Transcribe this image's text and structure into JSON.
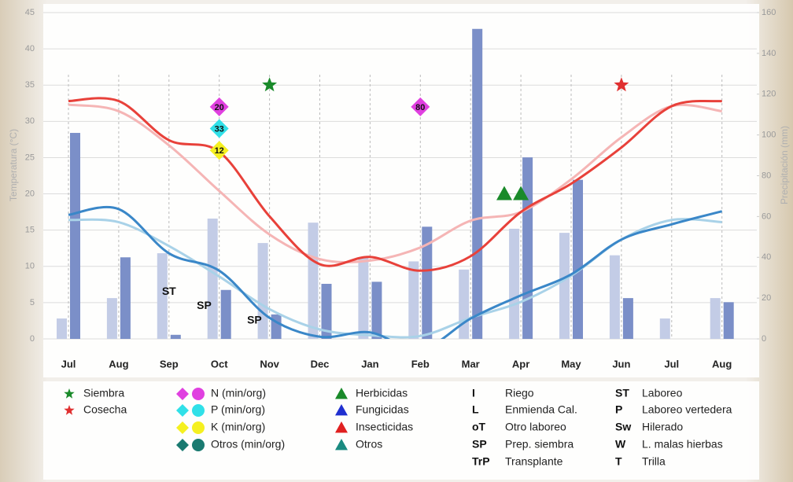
{
  "chart_data": {
    "type": "climate",
    "categories": [
      "Jul",
      "Aug",
      "Sep",
      "Oct",
      "Nov",
      "Dec",
      "Jan",
      "Feb",
      "Mar",
      "Apr",
      "May",
      "Jun",
      "Jul",
      "Aug"
    ],
    "ylabel": "Temperatura (°C)",
    "y2label": "Precipitación (mm)",
    "ylim": [
      0,
      45
    ],
    "yticks": [
      0,
      5,
      10,
      15,
      20,
      25,
      30,
      35,
      40,
      45
    ],
    "y2lim": [
      0,
      160
    ],
    "y2ticks": [
      0,
      20,
      40,
      60,
      80,
      100,
      120,
      140,
      160
    ],
    "grid": true,
    "series": [
      {
        "kind": "bar",
        "axis": "y2",
        "color": "#c3cce6",
        "values": [
          10,
          20,
          42,
          59,
          47,
          57,
          40,
          38,
          34,
          54,
          52,
          41,
          10,
          20
        ]
      },
      {
        "kind": "bar",
        "axis": "y2",
        "color": "#7b8fc8",
        "values": [
          101,
          40,
          2,
          24,
          12,
          27,
          28,
          55,
          152,
          89,
          78,
          20,
          null,
          18
        ]
      },
      {
        "kind": "line",
        "color": "#f5b5b5",
        "values": [
          32.3,
          31.4,
          26.7,
          20.4,
          14.4,
          11,
          10.8,
          12.6,
          16.3,
          17.5,
          22,
          27.8,
          32.1,
          31.4
        ]
      },
      {
        "kind": "line",
        "color": "#a9d2e8",
        "values": [
          16.4,
          16.1,
          12.8,
          8.6,
          4.1,
          1.3,
          0.5,
          0.4,
          2.9,
          5.1,
          8.7,
          13.7,
          16.4,
          16.1
        ]
      },
      {
        "kind": "line",
        "color": "#e8413a",
        "values": [
          32.8,
          32.8,
          27.4,
          25.8,
          16.9,
          10.3,
          11.3,
          9.4,
          11.4,
          17.5,
          21.4,
          26.4,
          32.1,
          32.8
        ]
      },
      {
        "kind": "line",
        "color": "#3a87c8",
        "values": [
          17.1,
          17.9,
          11.8,
          9.4,
          2.9,
          0.3,
          0.9,
          -1.5,
          2.8,
          6.0,
          8.9,
          13.7,
          15.8,
          17.6
        ]
      }
    ],
    "markers": [
      {
        "shape": "star",
        "color": "#1a8a2a",
        "x": 4,
        "y": 35
      },
      {
        "shape": "star",
        "color": "#e03030",
        "x": 11,
        "y": 35
      },
      {
        "shape": "diamond",
        "color": "#e040e0",
        "x": 3,
        "y": 32,
        "label": "20"
      },
      {
        "shape": "diamond",
        "color": "#30e0e8",
        "x": 3,
        "y": 29,
        "label": "33"
      },
      {
        "shape": "diamond",
        "color": "#f5f020",
        "x": 3,
        "y": 26,
        "label": "12"
      },
      {
        "shape": "diamond",
        "color": "#e040e0",
        "x": 7,
        "y": 32,
        "label": "80"
      },
      {
        "shape": "triangle",
        "color": "#1a8a2a",
        "x": 8.67,
        "y": 20
      },
      {
        "shape": "triangle",
        "color": "#1a8a2a",
        "x": 9,
        "y": 20
      },
      {
        "shape": "text",
        "x": 2,
        "y": 6.5,
        "label": "ST"
      },
      {
        "shape": "text",
        "x": 2.7,
        "y": 4.5,
        "label": "SP"
      },
      {
        "shape": "text",
        "x": 3.7,
        "y": 2.5,
        "label": "SP"
      }
    ],
    "legend": [
      [
        {
          "shape": "star",
          "color": "#1a8a2a",
          "label": "Siembra"
        },
        {
          "shape": "star",
          "color": "#e03030",
          "label": "Cosecha"
        }
      ],
      [
        {
          "shape": "pair",
          "color": "#e040e0",
          "label": "N (min/org)"
        },
        {
          "shape": "pair",
          "color": "#30e0e8",
          "label": "P (min/org)"
        },
        {
          "shape": "pair",
          "color": "#f5f020",
          "label": "K (min/org)"
        },
        {
          "shape": "pair",
          "color": "#1a7a70",
          "label": "Otros (min/org)"
        }
      ],
      [
        {
          "shape": "triangle",
          "color": "#1a8a2a",
          "label": "Herbicidas"
        },
        {
          "shape": "triangle",
          "color": "#2030d0",
          "label": "Fungicidas"
        },
        {
          "shape": "triangle",
          "color": "#e02020",
          "label": "Insecticidas"
        },
        {
          "shape": "triangle",
          "color": "#1a8a80",
          "label": "Otros"
        }
      ]
    ],
    "abbreviations": [
      [
        {
          "code": "I",
          "label": "Riego"
        },
        {
          "code": "L",
          "label": "Enmienda Cal."
        },
        {
          "code": "oT",
          "label": "Otro laboreo"
        },
        {
          "code": "SP",
          "label": "Prep. siembra"
        },
        {
          "code": "TrP",
          "label": "Transplante"
        }
      ],
      [
        {
          "code": "ST",
          "label": "Laboreo"
        },
        {
          "code": "P",
          "label": "Laboreo vertedera"
        },
        {
          "code": "Sw",
          "label": "Hilerado"
        },
        {
          "code": "W",
          "label": "L. malas hierbas"
        },
        {
          "code": "T",
          "label": "Trilla"
        }
      ]
    ]
  }
}
